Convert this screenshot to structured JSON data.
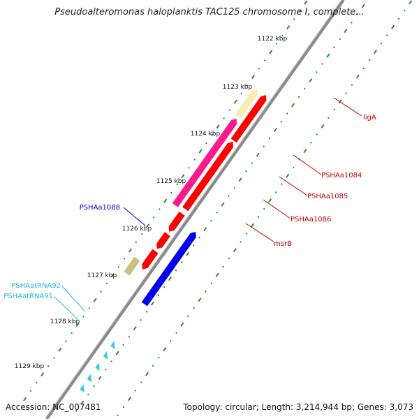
{
  "title": "Pseudoalteromonas haloplanktis TAC125 chromosome I, complete...",
  "footer": {
    "accession": "Accession: NC_007481",
    "summary": "Topology: circular; Length: 3,214,944 bp; Genes: 3,073"
  },
  "colors": {
    "backbone": "#8a8a8a",
    "tick": "#2e8b2e",
    "cds_forward": "#ff0000",
    "cds_reverse_pink": "#ff1a8c",
    "cds_blue": "#0000ee",
    "cds_khaki": "#c8c080",
    "trna": "#33ccee",
    "pale": "#f5eeb0"
  },
  "ruler": {
    "labels": [
      "1122 kbp",
      "1123 kbp",
      "1124 kbp",
      "1125 kbp",
      "1126 kbp",
      "1127 kbp",
      "1128 kbp",
      "1129 kbp"
    ]
  },
  "genes": [
    {
      "id": "ligA",
      "label": "ligA",
      "color": "#cc0000"
    },
    {
      "id": "psha1084",
      "label": "PSHAa1084",
      "color": "#cc0000"
    },
    {
      "id": "psha1085",
      "label": "PSHAa1085",
      "color": "#cc0000"
    },
    {
      "id": "psha1086",
      "label": "PSHAa1086",
      "color": "#cc0000"
    },
    {
      "id": "msrb",
      "label": "msrB",
      "color": "#cc0000"
    },
    {
      "id": "psha1088",
      "label": "PSHAa1088",
      "color": "#0000cc"
    },
    {
      "id": "trna92",
      "label": "PSHAatRNA92",
      "color": "#22b8e0"
    },
    {
      "id": "trna91",
      "label": "PSHAatRNA91",
      "color": "#22b8e0"
    }
  ]
}
